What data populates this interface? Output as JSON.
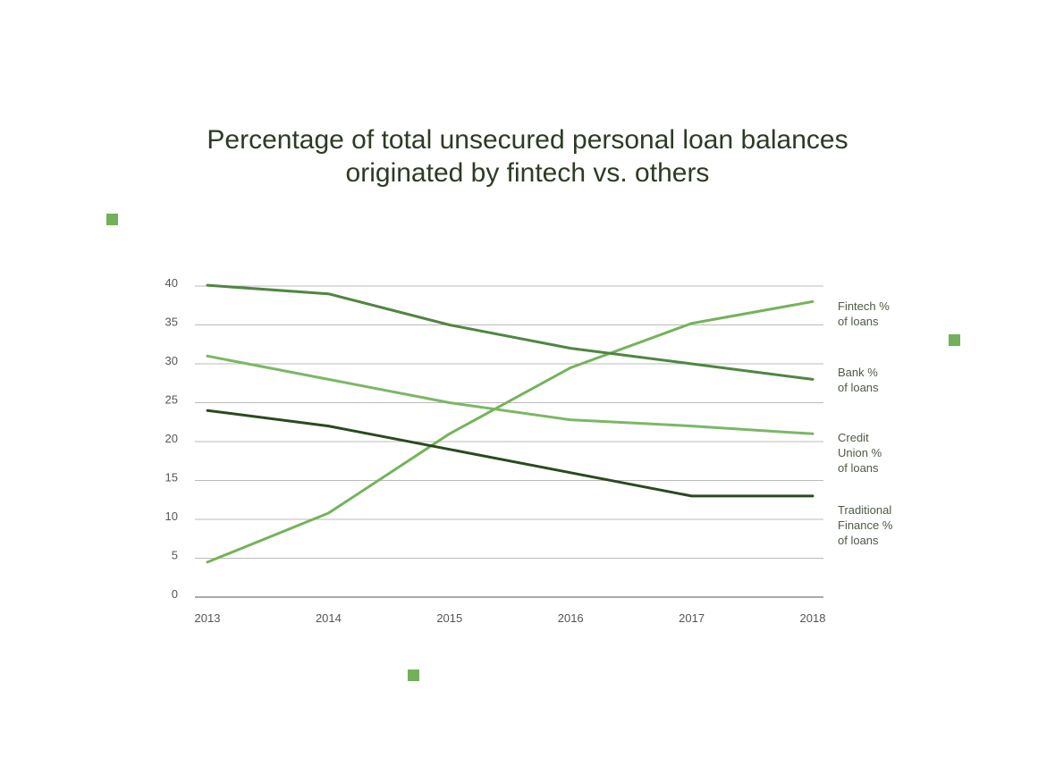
{
  "title_lines": [
    "Percentage of total unsecured personal loan balances",
    "originated by fintech vs. others"
  ],
  "colors": {
    "fintech": "#74b35a",
    "bank": "#4f8640",
    "credit_union": "#7ab865",
    "traditional_finance": "#2a4a1e",
    "grid": "#bbbbbb",
    "axis": "#555555",
    "marker": "#72b05a"
  },
  "chart_data": {
    "type": "line",
    "title": "Percentage of total unsecured personal loan balances originated by fintech vs. others",
    "x": [
      2013,
      2014,
      2015,
      2016,
      2017,
      2018
    ],
    "ylim": [
      0,
      40
    ],
    "yticks": [
      0,
      5,
      10,
      15,
      20,
      25,
      30,
      35,
      40
    ],
    "grid": true,
    "legend_position": "right",
    "series": [
      {
        "key": "fintech",
        "name_lines": [
          "Fintech %",
          "of loans"
        ],
        "values": [
          4.5,
          10.8,
          21,
          29.5,
          35.2,
          38
        ]
      },
      {
        "key": "bank",
        "name_lines": [
          "Bank %",
          "of loans"
        ],
        "values": [
          40.1,
          39,
          35,
          32,
          30,
          28
        ]
      },
      {
        "key": "credit_union",
        "name_lines": [
          "Credit",
          "Union %",
          "of loans"
        ],
        "values": [
          31,
          28,
          25,
          22.8,
          22,
          21
        ]
      },
      {
        "key": "traditional_finance",
        "name_lines": [
          "Traditional",
          "Finance %",
          "of loans"
        ],
        "values": [
          24,
          22,
          19,
          16,
          13,
          13
        ]
      }
    ]
  }
}
